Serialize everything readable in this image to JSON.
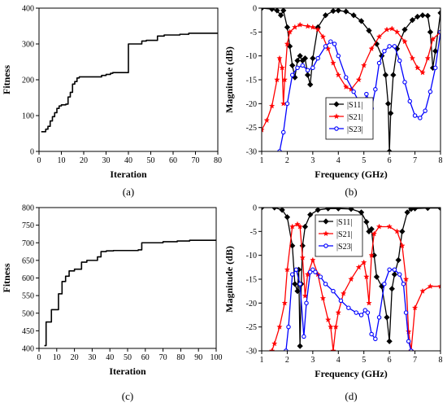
{
  "chart_data": [
    {
      "type": "line",
      "caption": "(a)",
      "xlabel": "Iteration",
      "ylabel": "Fitness",
      "xlim": [
        0,
        80
      ],
      "ylim": [
        0,
        400
      ],
      "xticks": [
        0,
        10,
        20,
        30,
        40,
        50,
        60,
        70,
        80
      ],
      "yticks": [
        0,
        100,
        200,
        300,
        400
      ],
      "line_color": "#000000",
      "series": [
        {
          "step": true,
          "x": [
            1,
            3,
            4,
            5,
            6,
            7,
            8,
            9,
            10,
            12,
            13,
            14,
            15,
            16,
            17,
            18,
            28,
            30,
            32,
            33,
            34,
            40,
            46,
            48,
            53,
            56,
            63,
            67,
            80
          ],
          "y": [
            55,
            62,
            70,
            85,
            97,
            108,
            120,
            127,
            130,
            132,
            152,
            165,
            188,
            195,
            205,
            208,
            212,
            215,
            218,
            220,
            220,
            300,
            308,
            310,
            322,
            325,
            327,
            330,
            330
          ]
        }
      ]
    },
    {
      "type": "line",
      "caption": "(b)",
      "xlabel": "Frequency (GHz)",
      "ylabel": "Magnitude (dB)",
      "xlim": [
        1,
        8
      ],
      "ylim": [
        -30,
        0
      ],
      "xticks": [
        1,
        2,
        3,
        4,
        5,
        6,
        7,
        8
      ],
      "yticks": [
        0,
        -5,
        -10,
        -15,
        -20,
        -25,
        -30
      ],
      "legend_position": "center",
      "series": [
        {
          "name": "|S11|",
          "color": "#000000",
          "marker": "diamond",
          "x": [
            1.0,
            1.4,
            1.6,
            1.75,
            1.85,
            2.0,
            2.1,
            2.2,
            2.3,
            2.4,
            2.5,
            2.6,
            2.7,
            2.8,
            2.9,
            3.0,
            3.2,
            3.5,
            3.8,
            4.0,
            4.3,
            4.6,
            4.9,
            5.2,
            5.5,
            5.7,
            5.85,
            5.95,
            6.0,
            6.05,
            6.15,
            6.3,
            6.6,
            6.9,
            7.1,
            7.3,
            7.5,
            7.6,
            7.7,
            7.8,
            8.0
          ],
          "y": [
            0.0,
            -0.2,
            -0.5,
            -1.5,
            -0.5,
            -4.0,
            -8.0,
            -12.0,
            -14.5,
            -11.0,
            -10.0,
            -11.0,
            -10.5,
            -14.0,
            -16.0,
            -10.5,
            -4.0,
            -1.5,
            -0.6,
            -0.5,
            -0.7,
            -1.5,
            -2.7,
            -4.7,
            -7.5,
            -10.0,
            -14.0,
            -20.0,
            -30.0,
            -22.0,
            -14.0,
            -8.5,
            -4.5,
            -2.5,
            -1.8,
            -1.5,
            -1.6,
            -5.0,
            -12.5,
            -9.0,
            -1.0
          ]
        },
        {
          "name": "|S21|",
          "color": "#ff0000",
          "marker": "star",
          "x": [
            1.0,
            1.2,
            1.4,
            1.6,
            1.7,
            1.8,
            1.85,
            1.9,
            2.0,
            2.1,
            2.3,
            2.5,
            2.8,
            3.0,
            3.2,
            3.4,
            3.6,
            3.8,
            4.0,
            4.3,
            4.5,
            4.8,
            5.0,
            5.3,
            5.6,
            5.9,
            6.1,
            6.3,
            6.6,
            6.9,
            7.1,
            7.3,
            7.5,
            7.7,
            8.0
          ],
          "y": [
            -25.5,
            -23.5,
            -20.5,
            -15.0,
            -10.5,
            -12.5,
            -20.0,
            -15.0,
            -7.5,
            -5.0,
            -4.0,
            -3.5,
            -3.8,
            -4.0,
            -4.5,
            -6.0,
            -8.5,
            -11.5,
            -14.0,
            -16.5,
            -17.0,
            -15.0,
            -12.0,
            -8.5,
            -6.0,
            -4.5,
            -4.3,
            -5.0,
            -7.0,
            -10.5,
            -12.5,
            -13.5,
            -10.5,
            -6.5,
            -5.0
          ]
        },
        {
          "name": "|S23|",
          "color": "#0000ff",
          "marker": "circle",
          "x": [
            1.7,
            1.85,
            2.0,
            2.2,
            2.4,
            2.6,
            2.8,
            3.0,
            3.2,
            3.5,
            3.7,
            3.85,
            4.0,
            4.3,
            4.6,
            4.8,
            5.0,
            5.1,
            5.2,
            5.3,
            5.45,
            5.6,
            5.8,
            6.0,
            6.2,
            6.4,
            6.6,
            6.8,
            7.0,
            7.2,
            7.4,
            7.6,
            7.8,
            8.0
          ],
          "y": [
            -30.0,
            -26.0,
            -20.0,
            -14.0,
            -12.5,
            -12.0,
            -13.0,
            -12.5,
            -10.5,
            -8.0,
            -7.0,
            -7.5,
            -10.0,
            -14.5,
            -17.5,
            -19.5,
            -21.5,
            -18.0,
            -19.5,
            -21.0,
            -17.0,
            -11.5,
            -9.0,
            -8.0,
            -8.0,
            -11.0,
            -15.5,
            -19.5,
            -22.5,
            -23.0,
            -21.5,
            -17.5,
            -12.5,
            -5.0
          ]
        }
      ]
    },
    {
      "type": "line",
      "caption": "(c)",
      "xlabel": "Iteration",
      "ylabel": "Fitness",
      "xlim": [
        0,
        100
      ],
      "ylim": [
        400,
        800
      ],
      "xticks": [
        0,
        10,
        20,
        30,
        40,
        50,
        60,
        70,
        80,
        90,
        100
      ],
      "yticks": [
        400,
        450,
        500,
        550,
        600,
        650,
        700,
        750,
        800
      ],
      "line_color": "#000000",
      "series": [
        {
          "step": true,
          "x": [
            3,
            4,
            6,
            7,
            9,
            11,
            13,
            15,
            17,
            20,
            24,
            27,
            31,
            33,
            35,
            38,
            42,
            50,
            56,
            58,
            70,
            78,
            85,
            100
          ],
          "y": [
            408,
            475,
            475,
            510,
            510,
            555,
            590,
            605,
            620,
            625,
            645,
            650,
            650,
            660,
            675,
            677,
            678,
            678,
            680,
            700,
            703,
            705,
            707,
            707
          ]
        }
      ]
    },
    {
      "type": "line",
      "caption": "(d)",
      "xlabel": "Frequency (GHz)",
      "ylabel": "Magnitude (dB)",
      "xlim": [
        1,
        8
      ],
      "ylim": [
        -30,
        0
      ],
      "xticks": [
        1,
        2,
        3,
        4,
        5,
        6,
        7,
        8
      ],
      "yticks": [
        0,
        -5,
        -10,
        -15,
        -20,
        -25,
        -30
      ],
      "legend_position": "top-center",
      "series": [
        {
          "name": "|S11|",
          "color": "#000000",
          "marker": "diamond",
          "x": [
            1.0,
            1.5,
            1.8,
            2.0,
            2.2,
            2.3,
            2.4,
            2.45,
            2.5,
            2.55,
            2.6,
            2.7,
            2.9,
            3.2,
            3.6,
            4.0,
            4.5,
            4.9,
            5.1,
            5.2,
            5.3,
            5.4,
            5.5,
            5.7,
            5.9,
            6.0,
            6.1,
            6.2,
            6.35,
            6.5,
            6.7,
            6.85,
            7.0,
            7.5,
            8.0
          ],
          "y": [
            0.0,
            0.0,
            -0.5,
            -2.0,
            -8.0,
            -16.0,
            -17.5,
            -13.0,
            -29.0,
            -16.0,
            -8.0,
            -4.0,
            -1.5,
            -0.5,
            -0.2,
            -0.2,
            -0.3,
            -1.0,
            -3.0,
            -5.0,
            -4.5,
            -10.0,
            -14.5,
            -16.5,
            -23.0,
            -28.0,
            -17.0,
            -14.0,
            -11.0,
            -5.0,
            -1.0,
            -0.3,
            -0.2,
            -0.1,
            -0.1
          ]
        },
        {
          "name": "|S21|",
          "color": "#ff0000",
          "marker": "star",
          "x": [
            1.4,
            1.5,
            1.7,
            1.9,
            2.0,
            2.2,
            2.4,
            2.5,
            2.6,
            2.7,
            2.8,
            3.0,
            3.2,
            3.4,
            3.6,
            3.7,
            3.8,
            3.9,
            4.0,
            4.2,
            4.5,
            4.8,
            5.0,
            5.1,
            5.2,
            5.3,
            5.4,
            5.6,
            6.0,
            6.3,
            6.5,
            6.65,
            6.75,
            6.85,
            7.0,
            7.3,
            7.6,
            8.0
          ],
          "y": [
            -30.0,
            -28.5,
            -25.0,
            -20.0,
            -13.0,
            -4.0,
            -3.5,
            -4.0,
            -10.5,
            -18.5,
            -14.0,
            -11.0,
            -14.0,
            -19.0,
            -23.5,
            -25.0,
            -30.0,
            -25.0,
            -22.0,
            -18.0,
            -15.0,
            -12.5,
            -11.5,
            -14.5,
            -20.0,
            -10.0,
            -5.5,
            -4.0,
            -4.0,
            -5.0,
            -8.0,
            -15.0,
            -26.0,
            -30.0,
            -21.0,
            -17.5,
            -16.5,
            -16.5
          ]
        },
        {
          "name": "|S23|",
          "color": "#0000ff",
          "marker": "circle",
          "x": [
            1.95,
            2.05,
            2.2,
            2.35,
            2.5,
            2.65,
            2.75,
            2.9,
            3.0,
            3.1,
            3.3,
            3.5,
            3.8,
            4.1,
            4.4,
            4.7,
            4.9,
            5.05,
            5.15,
            5.3,
            5.45,
            5.6,
            5.8,
            6.0,
            6.2,
            6.4,
            6.55,
            6.65,
            6.75,
            6.85
          ],
          "y": [
            -30.0,
            -25.0,
            -14.0,
            -13.0,
            -16.0,
            -27.0,
            -20.0,
            -13.5,
            -13.0,
            -13.5,
            -14.5,
            -16.0,
            -17.5,
            -19.5,
            -21.0,
            -22.0,
            -22.5,
            -21.5,
            -22.0,
            -26.5,
            -27.5,
            -23.0,
            -16.0,
            -13.0,
            -13.0,
            -14.0,
            -16.0,
            -22.0,
            -28.0,
            -30.0
          ]
        }
      ]
    }
  ]
}
